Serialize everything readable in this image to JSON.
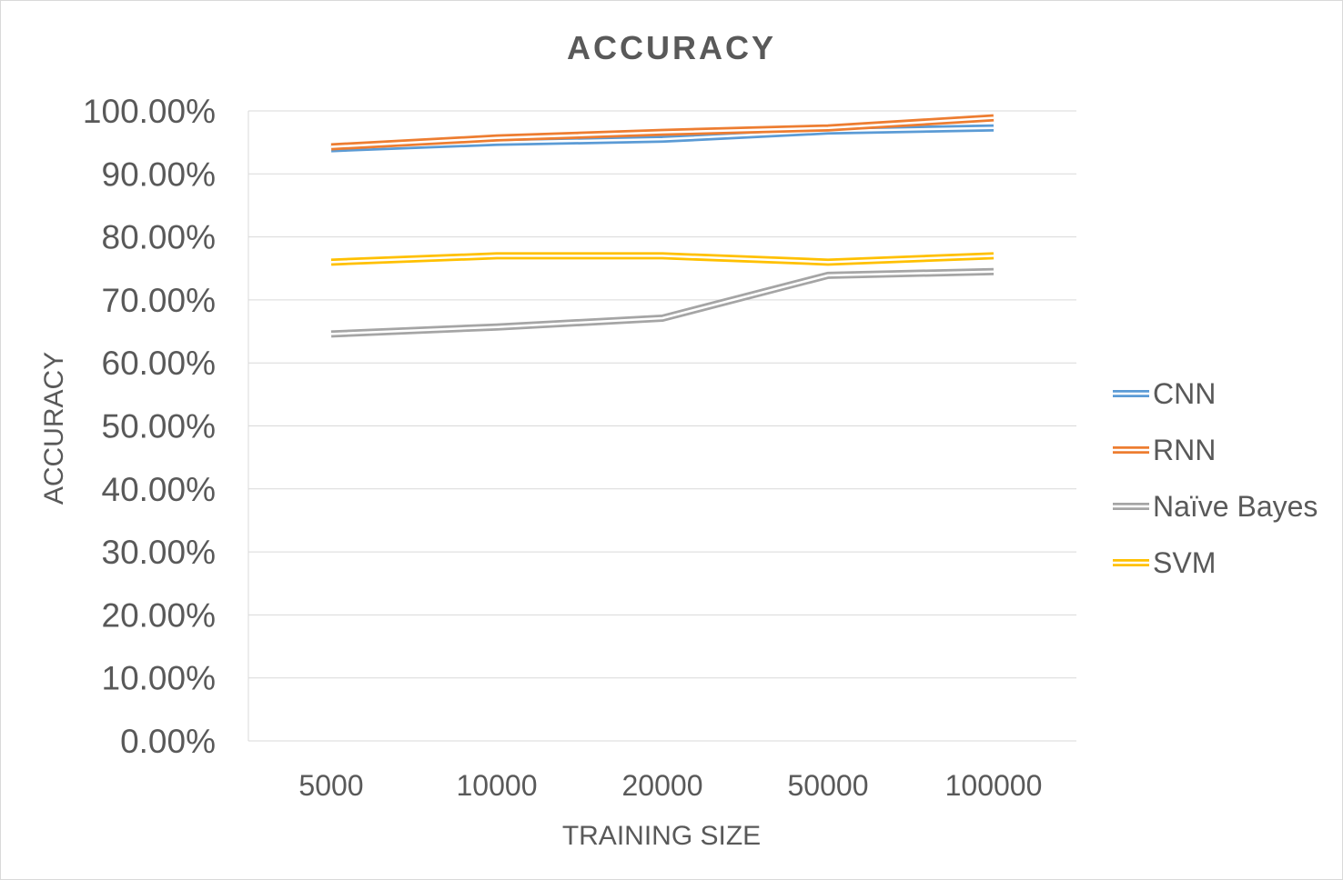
{
  "chart_data": {
    "type": "line",
    "title": "ACCURACY",
    "xlabel": "TRAINING SIZE",
    "ylabel": "ACCURACY",
    "categories": [
      "5000",
      "10000",
      "20000",
      "50000",
      "100000"
    ],
    "y_ticks": [
      "0.00%",
      "10.00%",
      "20.00%",
      "30.00%",
      "40.00%",
      "50.00%",
      "60.00%",
      "70.00%",
      "80.00%",
      "90.00%",
      "100.00%"
    ],
    "ylim": [
      0,
      100
    ],
    "grid": true,
    "legend": "right",
    "series": [
      {
        "name": "CNN",
        "color": "#5b9bd5",
        "values": [
          94.0,
          95.0,
          95.5,
          96.8,
          97.3
        ]
      },
      {
        "name": "RNN",
        "color": "#ed7d31",
        "values": [
          94.3,
          95.7,
          96.6,
          97.3,
          98.9
        ]
      },
      {
        "name": "Naïve Bayes",
        "color": "#a5a5a5",
        "values": [
          64.6,
          65.7,
          67.1,
          73.9,
          74.5
        ]
      },
      {
        "name": "SVM",
        "color": "#ffc000",
        "values": [
          76.0,
          77.0,
          77.0,
          76.0,
          77.0
        ]
      }
    ]
  }
}
